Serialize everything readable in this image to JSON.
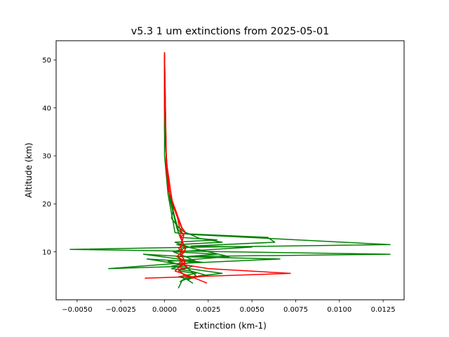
{
  "chart_data": {
    "type": "line",
    "title": "v5.3 1 um extinctions from 2025-05-01",
    "xlabel": "Extinction (km-1)",
    "ylabel": "Altitude (km)",
    "xlim": [
      -0.0062,
      0.0137
    ],
    "ylim": [
      0.0,
      54.0
    ],
    "x_ticks": [
      -0.005,
      -0.0025,
      0.0,
      0.0025,
      0.005,
      0.0075,
      0.01,
      0.0125
    ],
    "x_tick_labels": [
      "−0.0050",
      "−0.0025",
      "0.0000",
      "0.0025",
      "0.0050",
      "0.0075",
      "0.0100",
      "0.0125"
    ],
    "y_ticks": [
      10,
      20,
      30,
      40,
      50
    ],
    "y_tick_labels": [
      "10",
      "20",
      "30",
      "40",
      "50"
    ],
    "grid": false,
    "legend": "none",
    "series": [
      {
        "color": "#008000",
        "points": [
          [
            0.0,
            51.5
          ],
          [
            0.0,
            40.0
          ],
          [
            0.0,
            30.0
          ],
          [
            0.0001,
            26.0
          ],
          [
            0.0002,
            22.0
          ],
          [
            0.0003,
            20.0
          ],
          [
            0.0004,
            18.0
          ],
          [
            0.0005,
            16.0
          ],
          [
            0.0006,
            14.0
          ],
          [
            0.0016,
            13.6
          ],
          [
            0.0129,
            11.5
          ],
          [
            0.0024,
            11.0
          ],
          [
            -0.0054,
            10.5
          ],
          [
            0.0129,
            9.5
          ],
          [
            0.0008,
            9.0
          ],
          [
            0.0066,
            8.5
          ],
          [
            0.0004,
            7.5
          ],
          [
            -0.0032,
            6.5
          ],
          [
            0.0012,
            7.0
          ],
          [
            0.0018,
            5.0
          ],
          [
            0.001,
            4.0
          ],
          [
            0.0008,
            2.5
          ]
        ]
      },
      {
        "color": "#008000",
        "points": [
          [
            0.0,
            51.0
          ],
          [
            0.0001,
            30.0
          ],
          [
            0.0002,
            24.0
          ],
          [
            0.0004,
            20.0
          ],
          [
            0.0006,
            17.0
          ],
          [
            0.0008,
            14.5
          ],
          [
            0.001,
            13.8
          ],
          [
            0.0059,
            13.0
          ],
          [
            0.0063,
            12.0
          ],
          [
            0.0015,
            11.2
          ],
          [
            0.005,
            11.0
          ],
          [
            0.0006,
            10.0
          ],
          [
            0.003,
            9.5
          ],
          [
            0.0012,
            9.0
          ],
          [
            0.0018,
            8.0
          ],
          [
            0.0004,
            7.0
          ],
          [
            0.0033,
            5.5
          ],
          [
            0.002,
            5.0
          ],
          [
            0.0013,
            4.2
          ],
          [
            0.0016,
            3.5
          ]
        ]
      },
      {
        "color": "#008000",
        "points": [
          [
            0.0,
            50.0
          ],
          [
            0.0,
            35.0
          ],
          [
            0.0002,
            25.0
          ],
          [
            0.0003,
            21.0
          ],
          [
            0.0005,
            18.0
          ],
          [
            0.0007,
            15.0
          ],
          [
            0.0009,
            13.0
          ],
          [
            0.003,
            12.5
          ],
          [
            0.0006,
            12.0
          ],
          [
            0.0014,
            11.0
          ],
          [
            0.0005,
            10.0
          ],
          [
            0.0012,
            9.0
          ],
          [
            -0.0012,
            9.5
          ],
          [
            0.0008,
            8.5
          ],
          [
            0.0022,
            7.8
          ],
          [
            -0.001,
            8.5
          ],
          [
            0.0016,
            7.0
          ],
          [
            0.0008,
            6.0
          ],
          [
            0.0018,
            5.5
          ],
          [
            0.0008,
            4.8
          ],
          [
            0.0014,
            4.2
          ]
        ]
      },
      {
        "color": "#008000",
        "points": [
          [
            0.0,
            48.0
          ],
          [
            0.0001,
            28.0
          ],
          [
            0.0003,
            22.0
          ],
          [
            0.0005,
            19.0
          ],
          [
            0.0004,
            17.0
          ],
          [
            0.0007,
            15.5
          ],
          [
            0.0011,
            14.2
          ],
          [
            0.002,
            12.8
          ],
          [
            0.0033,
            12.0
          ],
          [
            0.0007,
            11.5
          ],
          [
            0.0037,
            9.0
          ],
          [
            0.0002,
            8.0
          ],
          [
            0.001,
            7.2
          ],
          [
            0.0004,
            6.5
          ],
          [
            0.0015,
            6.0
          ],
          [
            0.0025,
            5.0
          ],
          [
            0.0012,
            4.5
          ],
          [
            0.0009,
            3.8
          ]
        ]
      },
      {
        "color": "#ff0000",
        "points": [
          [
            0.0,
            51.5
          ],
          [
            0.0,
            40.0
          ],
          [
            0.0001,
            30.0
          ],
          [
            0.0002,
            25.0
          ],
          [
            0.0003,
            22.0
          ],
          [
            0.0005,
            20.0
          ],
          [
            0.0007,
            18.0
          ],
          [
            0.0008,
            16.0
          ],
          [
            0.0009,
            14.5
          ],
          [
            0.0011,
            13.5
          ],
          [
            0.001,
            12.0
          ],
          [
            0.0012,
            10.5
          ],
          [
            0.0009,
            9.5
          ],
          [
            0.0011,
            8.5
          ],
          [
            0.0008,
            7.5
          ],
          [
            0.0025,
            6.5
          ],
          [
            0.0072,
            5.5
          ],
          [
            -0.0011,
            4.5
          ]
        ]
      },
      {
        "color": "#ff0000",
        "points": [
          [
            0.0,
            51.0
          ],
          [
            0.0001,
            28.0
          ],
          [
            0.0002,
            23.0
          ],
          [
            0.0004,
            21.0
          ],
          [
            0.0006,
            19.0
          ],
          [
            0.0008,
            17.0
          ],
          [
            0.001,
            15.0
          ],
          [
            0.0012,
            14.0
          ],
          [
            0.0009,
            13.0
          ],
          [
            0.0011,
            11.5
          ],
          [
            0.0008,
            10.8
          ],
          [
            0.001,
            10.0
          ],
          [
            0.0007,
            9.0
          ],
          [
            0.0012,
            8.0
          ],
          [
            0.0009,
            7.0
          ],
          [
            0.0006,
            6.0
          ],
          [
            0.0014,
            5.0
          ],
          [
            0.0024,
            3.5
          ]
        ]
      },
      {
        "color": "#ff0000",
        "points": [
          [
            0.0,
            50.5
          ],
          [
            0.0001,
            29.0
          ],
          [
            0.0003,
            24.0
          ],
          [
            0.0004,
            21.5
          ],
          [
            0.0005,
            19.5
          ],
          [
            0.0007,
            17.5
          ],
          [
            0.001,
            14.8
          ],
          [
            0.0009,
            13.2
          ],
          [
            0.001,
            12.5
          ],
          [
            0.0009,
            11.0
          ],
          [
            0.0011,
            9.8
          ],
          [
            0.0008,
            8.8
          ],
          [
            0.001,
            7.8
          ],
          [
            0.0013,
            6.8
          ],
          [
            0.0008,
            6.3
          ],
          [
            0.0011,
            5.2
          ],
          [
            0.0016,
            4.5
          ]
        ]
      }
    ]
  }
}
